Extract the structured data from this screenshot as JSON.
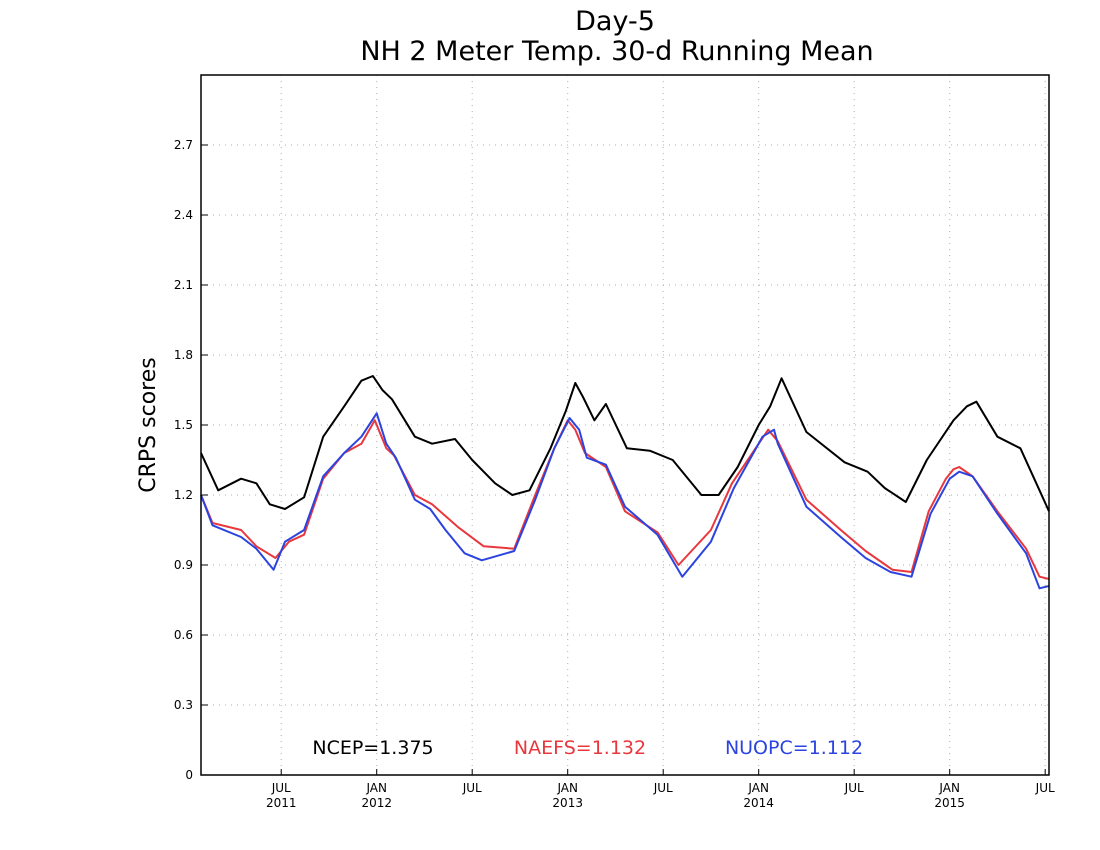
{
  "chart_data": {
    "type": "line",
    "title_line1": "Day-5",
    "title_line2": "NH 2 Meter Temp. 30-d Running Mean",
    "ylabel": "CRPS scores",
    "ylim": [
      0,
      3.0
    ],
    "yticks": [
      "0",
      "0.3",
      "0.6",
      "0.9",
      "1.2",
      "1.5",
      "1.8",
      "2.1",
      "2.4",
      "2.7"
    ],
    "xlim": [
      2011.08,
      2015.52
    ],
    "xticks": [
      {
        "month": "JUL",
        "year": "2011",
        "x": 2011.5
      },
      {
        "month": "JAN",
        "year": "2012",
        "x": 2012.0
      },
      {
        "month": "JUL",
        "year": "",
        "x": 2012.5
      },
      {
        "month": "JAN",
        "year": "2013",
        "x": 2013.0
      },
      {
        "month": "JUL",
        "year": "",
        "x": 2013.5
      },
      {
        "month": "JAN",
        "year": "2014",
        "x": 2014.0
      },
      {
        "month": "JUL",
        "year": "",
        "x": 2014.5
      },
      {
        "month": "JAN",
        "year": "2015",
        "x": 2015.0
      },
      {
        "month": "JUL",
        "year": "",
        "x": 2015.5
      }
    ],
    "grid": true,
    "series": [
      {
        "name": "NCEP",
        "legend": "NCEP=1.375",
        "color": "#000000",
        "x": [
          2011.08,
          2011.17,
          2011.29,
          2011.37,
          2011.44,
          2011.52,
          2011.62,
          2011.72,
          2011.83,
          2011.92,
          2011.98,
          2012.03,
          2012.08,
          2012.2,
          2012.29,
          2012.41,
          2012.5,
          2012.62,
          2012.71,
          2012.8,
          2012.91,
          2012.99,
          2013.04,
          2013.08,
          2013.14,
          2013.2,
          2013.31,
          2013.43,
          2013.55,
          2013.7,
          2013.79,
          2013.89,
          2014.0,
          2014.06,
          2014.12,
          2014.25,
          2014.45,
          2014.57,
          2014.66,
          2014.77,
          2014.88,
          2015.02,
          2015.09,
          2015.14,
          2015.25,
          2015.37,
          2015.47,
          2015.52
        ],
        "y": [
          1.38,
          1.22,
          1.27,
          1.25,
          1.16,
          1.14,
          1.19,
          1.45,
          1.58,
          1.69,
          1.71,
          1.65,
          1.61,
          1.45,
          1.42,
          1.44,
          1.35,
          1.25,
          1.2,
          1.22,
          1.4,
          1.56,
          1.68,
          1.62,
          1.52,
          1.59,
          1.4,
          1.39,
          1.35,
          1.2,
          1.2,
          1.32,
          1.5,
          1.58,
          1.7,
          1.47,
          1.34,
          1.3,
          1.23,
          1.17,
          1.35,
          1.52,
          1.58,
          1.6,
          1.45,
          1.4,
          1.22,
          1.13
        ]
      },
      {
        "name": "NAEFS",
        "legend": "NAEFS=1.132",
        "color": "#e8383d",
        "x": [
          2011.08,
          2011.14,
          2011.29,
          2011.37,
          2011.47,
          2011.54,
          2011.62,
          2011.72,
          2011.83,
          2011.92,
          2011.99,
          2012.05,
          2012.09,
          2012.2,
          2012.29,
          2012.43,
          2012.56,
          2012.72,
          2012.83,
          2012.93,
          2013.0,
          2013.04,
          2013.09,
          2013.2,
          2013.3,
          2013.47,
          2013.58,
          2013.75,
          2013.86,
          2014.0,
          2014.05,
          2014.1,
          2014.25,
          2014.43,
          2014.56,
          2014.7,
          2014.8,
          2014.89,
          2014.98,
          2015.02,
          2015.05,
          2015.12,
          2015.25,
          2015.4,
          2015.47,
          2015.52
        ],
        "y": [
          1.2,
          1.08,
          1.05,
          0.98,
          0.93,
          1.0,
          1.03,
          1.27,
          1.38,
          1.42,
          1.52,
          1.4,
          1.37,
          1.2,
          1.16,
          1.06,
          0.98,
          0.97,
          1.2,
          1.4,
          1.52,
          1.48,
          1.38,
          1.32,
          1.13,
          1.04,
          0.9,
          1.05,
          1.25,
          1.42,
          1.48,
          1.43,
          1.18,
          1.05,
          0.96,
          0.88,
          0.87,
          1.13,
          1.27,
          1.31,
          1.32,
          1.28,
          1.13,
          0.97,
          0.85,
          0.84
        ]
      },
      {
        "name": "NUOPC",
        "legend": "NUOPC=1.112",
        "color": "#2b44e0",
        "x": [
          2011.08,
          2011.14,
          2011.29,
          2011.37,
          2011.46,
          2011.52,
          2011.62,
          2011.72,
          2011.83,
          2011.92,
          2012.0,
          2012.05,
          2012.1,
          2012.2,
          2012.28,
          2012.36,
          2012.46,
          2012.55,
          2012.72,
          2012.83,
          2012.93,
          2013.01,
          2013.06,
          2013.1,
          2013.2,
          2013.3,
          2013.47,
          2013.6,
          2013.75,
          2013.87,
          2014.02,
          2014.08,
          2014.1,
          2014.25,
          2014.43,
          2014.56,
          2014.69,
          2014.8,
          2014.9,
          2015.0,
          2015.05,
          2015.12,
          2015.25,
          2015.4,
          2015.47,
          2015.52
        ],
        "y": [
          1.2,
          1.07,
          1.02,
          0.97,
          0.88,
          1.0,
          1.05,
          1.28,
          1.38,
          1.45,
          1.55,
          1.42,
          1.36,
          1.18,
          1.14,
          1.05,
          0.95,
          0.92,
          0.96,
          1.18,
          1.4,
          1.53,
          1.48,
          1.36,
          1.33,
          1.15,
          1.03,
          0.85,
          1.0,
          1.23,
          1.45,
          1.48,
          1.42,
          1.15,
          1.02,
          0.93,
          0.87,
          0.85,
          1.12,
          1.27,
          1.3,
          1.28,
          1.12,
          0.95,
          0.8,
          0.81
        ]
      }
    ]
  }
}
